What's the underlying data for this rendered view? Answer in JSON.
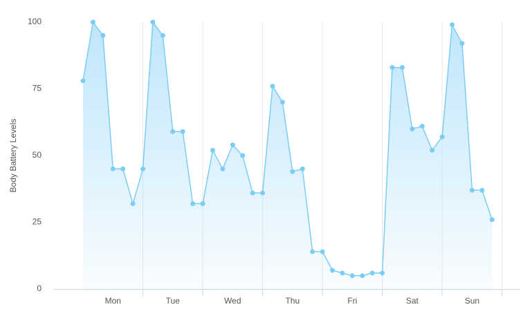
{
  "chart_data": {
    "type": "area",
    "ylabel": "Body Battery Levels",
    "categories": [
      null,
      null,
      null,
      "Mon",
      null,
      null,
      null,
      null,
      null,
      "Tue",
      null,
      null,
      null,
      null,
      null,
      "Wed",
      null,
      null,
      null,
      null,
      null,
      "Thu",
      null,
      null,
      null,
      null,
      null,
      "Fri",
      null,
      null,
      null,
      null,
      null,
      "Sat",
      null,
      null,
      null,
      null,
      null,
      "Sun",
      null,
      null
    ],
    "series": [
      {
        "color": "#7ccdf4",
        "values": [
          78,
          100,
          95,
          45,
          45,
          32,
          45,
          100,
          95,
          59,
          59,
          32,
          32,
          52,
          45,
          54,
          50,
          36,
          36,
          76,
          70,
          44,
          45,
          14,
          14,
          7,
          6,
          5,
          5,
          6,
          6,
          83,
          83,
          60,
          61,
          52,
          57,
          99,
          92,
          37,
          37,
          26
        ]
      }
    ],
    "ylim": [
      0,
      100
    ],
    "yticks": [
      0,
      25,
      50,
      75,
      100
    ]
  }
}
